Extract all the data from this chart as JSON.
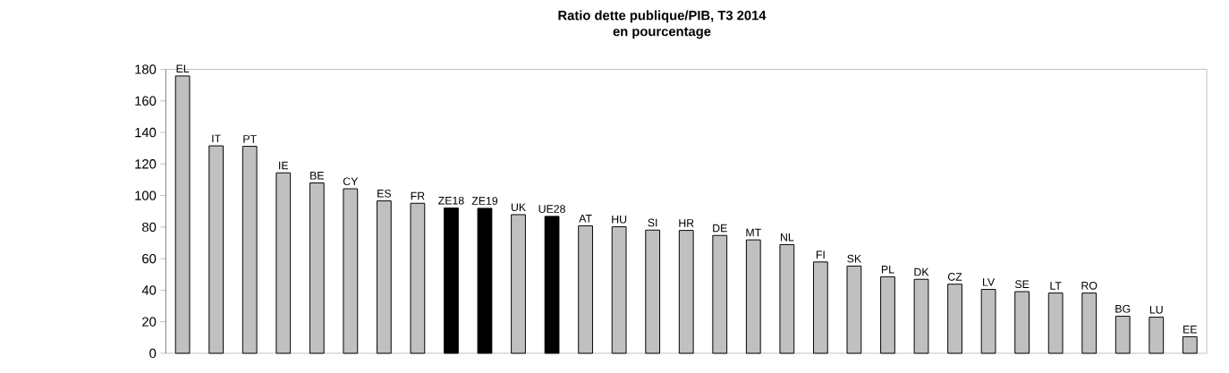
{
  "chart_data": {
    "type": "bar",
    "title": "Ratio dette publique/PIB, T3 2014",
    "subtitle": "en pourcentage",
    "categories": [
      "EL",
      "IT",
      "PT",
      "IE",
      "BE",
      "CY",
      "ES",
      "FR",
      "ZE18",
      "ZE19",
      "UK",
      "UE28",
      "AT",
      "HU",
      "SI",
      "HR",
      "DE",
      "MT",
      "NL",
      "FI",
      "SK",
      "PL",
      "DK",
      "CZ",
      "LV",
      "SE",
      "LT",
      "RO",
      "BG",
      "LU",
      "EE"
    ],
    "values": [
      175.8,
      131.5,
      131.2,
      114.4,
      108.0,
      104.3,
      96.6,
      95.1,
      92.1,
      91.9,
      87.9,
      86.8,
      80.8,
      80.2,
      78.1,
      77.9,
      74.7,
      71.9,
      68.9,
      57.9,
      55.3,
      48.5,
      46.9,
      43.8,
      40.5,
      39.1,
      38.2,
      38.2,
      23.5,
      22.9,
      10.5
    ],
    "colors": [
      "#c0c0c0",
      "#c0c0c0",
      "#c0c0c0",
      "#c0c0c0",
      "#c0c0c0",
      "#c0c0c0",
      "#c0c0c0",
      "#c0c0c0",
      "#000000",
      "#000000",
      "#c0c0c0",
      "#000000",
      "#c0c0c0",
      "#c0c0c0",
      "#c0c0c0",
      "#c0c0c0",
      "#c0c0c0",
      "#c0c0c0",
      "#c0c0c0",
      "#c0c0c0",
      "#c0c0c0",
      "#c0c0c0",
      "#c0c0c0",
      "#c0c0c0",
      "#c0c0c0",
      "#c0c0c0",
      "#c0c0c0",
      "#c0c0c0",
      "#c0c0c0",
      "#c0c0c0",
      "#c0c0c0"
    ],
    "ylim": [
      0,
      180
    ],
    "yticks": [
      0,
      20,
      40,
      60,
      80,
      100,
      120,
      140,
      160,
      180
    ],
    "grid": false,
    "tick_labels": "y"
  }
}
